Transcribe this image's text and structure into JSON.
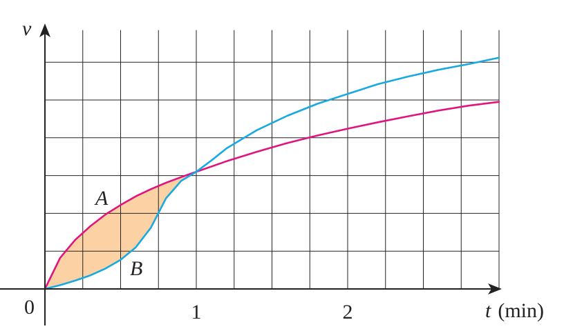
{
  "chart_data": {
    "type": "line",
    "xlabel": "t",
    "xunit": "(min)",
    "ylabel": "v",
    "origin_label": "0",
    "x_ticks": [
      "1",
      "2"
    ],
    "x_tick_values": [
      1,
      2
    ],
    "xlim": [
      0,
      3
    ],
    "ylim": [
      0,
      6
    ],
    "grid": true,
    "grid_step_x": 0.25,
    "grid_step_y": 1,
    "shaded_region": {
      "between": [
        "A",
        "B"
      ],
      "x_range": [
        0,
        1
      ],
      "color": "#fcd2a4"
    },
    "series": [
      {
        "name": "A",
        "color": "#e0147f",
        "x": [
          0,
          0.1,
          0.2,
          0.3,
          0.4,
          0.5,
          0.6,
          0.7,
          0.8,
          0.9,
          1.0,
          1.2,
          1.4,
          1.6,
          1.8,
          2.0,
          2.2,
          2.4,
          2.6,
          2.8,
          3.0
        ],
        "values": [
          0,
          0.82,
          1.3,
          1.66,
          1.97,
          2.22,
          2.45,
          2.64,
          2.81,
          2.96,
          3.1,
          3.38,
          3.63,
          3.86,
          4.06,
          4.24,
          4.41,
          4.57,
          4.72,
          4.85,
          4.95
        ]
      },
      {
        "name": "B",
        "color": "#18a9e0",
        "x": [
          0,
          0.1,
          0.2,
          0.3,
          0.4,
          0.5,
          0.6,
          0.7,
          0.8,
          0.9,
          1.0,
          1.1,
          1.2,
          1.4,
          1.6,
          1.8,
          2.0,
          2.2,
          2.4,
          2.6,
          2.8,
          3.0
        ],
        "values": [
          0,
          0.1,
          0.22,
          0.36,
          0.54,
          0.77,
          1.1,
          1.62,
          2.4,
          2.86,
          3.1,
          3.4,
          3.72,
          4.2,
          4.58,
          4.9,
          5.16,
          5.42,
          5.62,
          5.8,
          5.95,
          6.12
        ]
      }
    ]
  }
}
